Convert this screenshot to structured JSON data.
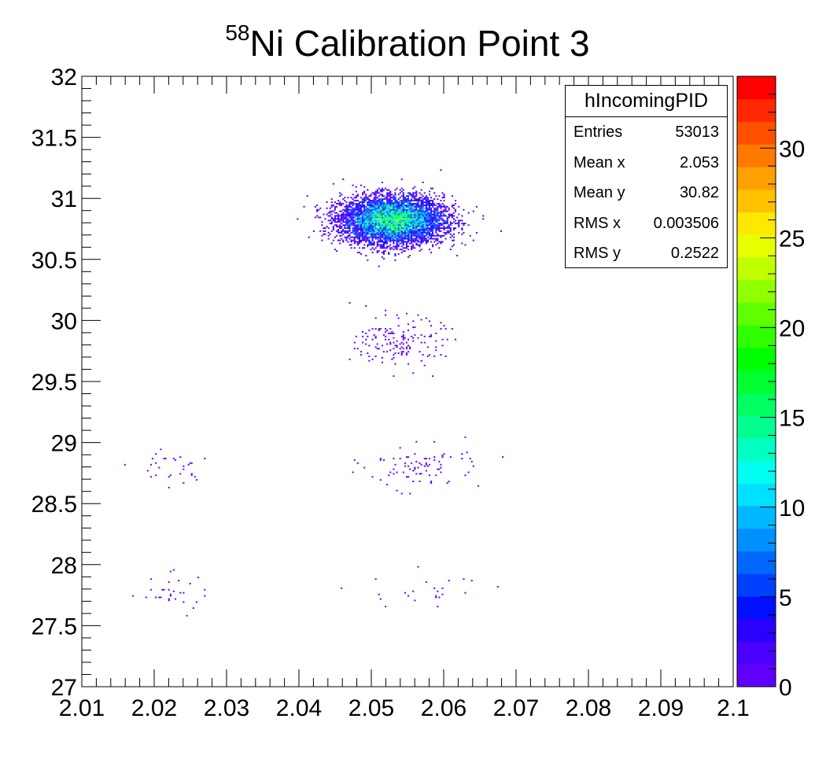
{
  "title_iso": "58",
  "title_main": "Ni Calibration Point 3",
  "stats": {
    "name": "hIncomingPID",
    "rows": [
      {
        "label": "Entries",
        "value": "53013"
      },
      {
        "label": "Mean x",
        "value": "2.053"
      },
      {
        "label": "Mean y",
        "value": "30.82"
      },
      {
        "label": "RMS x",
        "value": "0.003506"
      },
      {
        "label": "RMS y",
        "value": "0.2522"
      }
    ]
  },
  "chart_data": {
    "type": "heatmap",
    "title": "58Ni Calibration Point 3",
    "xlabel": "",
    "ylabel": "",
    "xlim": [
      2.01,
      2.1
    ],
    "ylim": [
      27,
      32
    ],
    "zlim": [
      0,
      34
    ],
    "x_ticks": [
      "2.01",
      "2.02",
      "2.03",
      "2.04",
      "2.05",
      "2.06",
      "2.07",
      "2.08",
      "2.09",
      "2.1"
    ],
    "y_ticks": [
      "27",
      "27.5",
      "28",
      "28.5",
      "29",
      "29.5",
      "30",
      "30.5",
      "31",
      "31.5",
      "32"
    ],
    "z_ticks": [
      "0",
      "5",
      "10",
      "15",
      "20",
      "25",
      "30"
    ],
    "palette": [
      "#6000ff",
      "#4a00ff",
      "#2a00ff",
      "#0010ff",
      "#0040ff",
      "#0068ff",
      "#0090ff",
      "#00b8ff",
      "#00e0ff",
      "#00fff0",
      "#00ffc0",
      "#00ff90",
      "#00ff60",
      "#00ff30",
      "#00ff00",
      "#30ff00",
      "#60ff00",
      "#90ff00",
      "#c0ff00",
      "#e8ff00",
      "#ffe800",
      "#ffc000",
      "#ffa000",
      "#ff7800",
      "#ff5000",
      "#ff2800",
      "#ff0000"
    ],
    "clusters": [
      {
        "x": 2.053,
        "y": 30.82,
        "sx": 0.0035,
        "sy": 0.095,
        "peak": 26,
        "approx_entries": 49000
      },
      {
        "x": 2.054,
        "y": 29.82,
        "sx": 0.003,
        "sy": 0.1,
        "peak": 2,
        "approx_entries": 170
      },
      {
        "x": 2.057,
        "y": 28.8,
        "sx": 0.004,
        "sy": 0.09,
        "peak": 1,
        "approx_entries": 90
      },
      {
        "x": 2.022,
        "y": 28.8,
        "sx": 0.0025,
        "sy": 0.08,
        "peak": 1,
        "approx_entries": 30
      },
      {
        "x": 2.022,
        "y": 27.77,
        "sx": 0.003,
        "sy": 0.08,
        "peak": 1,
        "approx_entries": 30
      },
      {
        "x": 2.058,
        "y": 27.78,
        "sx": 0.004,
        "sy": 0.08,
        "peak": 1,
        "approx_entries": 25
      }
    ]
  }
}
